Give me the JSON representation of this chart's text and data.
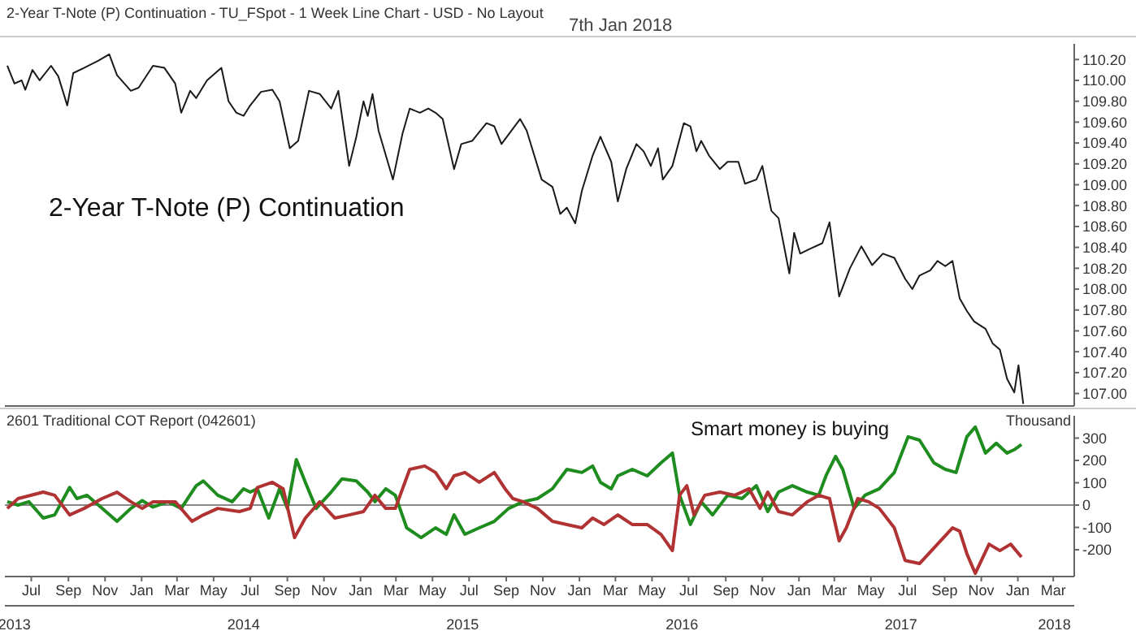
{
  "chart_data": [
    {
      "type": "line",
      "title": "2-Year T-Note (P) Continuation - TU_FSpot - 1 Week Line Chart - USD - No Layout",
      "annotations": [
        "7th Jan 2018",
        "2-Year T-Note (P) Continuation"
      ],
      "marker": "none",
      "line_style": "solid",
      "legend": false,
      "grid": false,
      "tick_labels": "y",
      "xlim": [
        "2013-05-18",
        "2018-04-05"
      ],
      "ylim": [
        106.88,
        110.35
      ],
      "yticks": [
        {
          "value": 107,
          "label": "107.00"
        },
        {
          "value": 107.2,
          "label": "107.20"
        },
        {
          "value": 107.4,
          "label": "107.40"
        },
        {
          "value": 107.6,
          "label": "107.60"
        },
        {
          "value": 107.8,
          "label": "107.80"
        },
        {
          "value": 108,
          "label": "108.00"
        },
        {
          "value": 108.2,
          "label": "108.20"
        },
        {
          "value": 108.4,
          "label": "108.40"
        },
        {
          "value": 108.6,
          "label": "108.60"
        },
        {
          "value": 108.8,
          "label": "108.80"
        },
        {
          "value": 109,
          "label": "109.00"
        },
        {
          "value": 109.2,
          "label": "109.20"
        },
        {
          "value": 109.4,
          "label": "109.40"
        },
        {
          "value": 109.6,
          "label": "109.60"
        },
        {
          "value": 109.8,
          "label": "109.80"
        },
        {
          "value": 110,
          "label": "110.00"
        },
        {
          "value": 110.2,
          "label": "110.20"
        }
      ],
      "series": [
        {
          "color": "#1a1a1a",
          "x": [
            "2013-05-22",
            "2013-06-03",
            "2013-06-15",
            "2013-06-21",
            "2013-07-03",
            "2013-07-15",
            "2013-08-03",
            "2013-08-15",
            "2013-08-30",
            "2013-09-09",
            "2013-09-27",
            "2013-10-21",
            "2013-11-08",
            "2013-11-21",
            "2013-12-14",
            "2013-12-27",
            "2014-01-20",
            "2014-02-08",
            "2014-02-26",
            "2014-03-08",
            "2014-03-23",
            "2014-04-02",
            "2014-04-20",
            "2014-05-14",
            "2014-05-26",
            "2014-06-08",
            "2014-06-20",
            "2014-07-01",
            "2014-07-19",
            "2014-08-07",
            "2014-08-19",
            "2014-09-05",
            "2014-09-19",
            "2014-10-07",
            "2014-10-25",
            "2014-11-13",
            "2014-11-25",
            "2014-12-13",
            "2014-12-25",
            "2015-01-06",
            "2015-01-13",
            "2015-01-21",
            "2015-01-31",
            "2015-02-24",
            "2015-03-12",
            "2015-03-24",
            "2015-04-10",
            "2015-04-24",
            "2015-05-06",
            "2015-05-18",
            "2015-06-06",
            "2015-06-18",
            "2015-07-06",
            "2015-07-30",
            "2015-08-12",
            "2015-08-24",
            "2015-09-24",
            "2015-10-05",
            "2015-10-30",
            "2015-11-17",
            "2015-11-30",
            "2015-12-11",
            "2015-12-25",
            "2016-01-05",
            "2016-01-23",
            "2016-02-05",
            "2016-02-23",
            "2016-03-05",
            "2016-03-19",
            "2016-04-05",
            "2016-04-17",
            "2016-04-29",
            "2016-05-11",
            "2016-05-19",
            "2016-06-04",
            "2016-06-23",
            "2016-07-04",
            "2016-07-14",
            "2016-07-22",
            "2016-08-04",
            "2016-08-22",
            "2016-09-04",
            "2016-09-22",
            "2016-10-03",
            "2016-10-22",
            "2016-11-01",
            "2016-11-16",
            "2016-11-28",
            "2016-12-16",
            "2016-12-24",
            "2017-01-03",
            "2017-01-21",
            "2017-02-09",
            "2017-02-21",
            "2017-03-09",
            "2017-03-27",
            "2017-04-15",
            "2017-05-03",
            "2017-05-21",
            "2017-06-09",
            "2017-06-27",
            "2017-07-09",
            "2017-07-21",
            "2017-08-08",
            "2017-08-20",
            "2017-09-02",
            "2017-09-14",
            "2017-09-26",
            "2017-10-08",
            "2017-10-20",
            "2017-11-08",
            "2017-11-20",
            "2017-12-02",
            "2017-12-14",
            "2017-12-26",
            "2018-01-02",
            "2018-01-10"
          ],
          "values": [
            110.14,
            109.97,
            110.0,
            109.91,
            110.1,
            110.0,
            110.14,
            110.04,
            109.76,
            110.07,
            110.12,
            110.19,
            110.25,
            110.05,
            109.9,
            109.93,
            110.14,
            110.12,
            109.97,
            109.69,
            109.9,
            109.83,
            110.0,
            110.12,
            109.8,
            109.69,
            109.66,
            109.76,
            109.89,
            109.91,
            109.8,
            109.35,
            109.42,
            109.9,
            109.87,
            109.73,
            109.9,
            109.18,
            109.46,
            109.8,
            109.66,
            109.87,
            109.52,
            109.05,
            109.49,
            109.73,
            109.69,
            109.73,
            109.69,
            109.63,
            109.15,
            109.39,
            109.42,
            109.59,
            109.56,
            109.39,
            109.63,
            109.52,
            109.05,
            108.98,
            108.72,
            108.78,
            108.63,
            108.94,
            109.28,
            109.46,
            109.22,
            108.84,
            109.15,
            109.39,
            109.32,
            109.18,
            109.35,
            109.05,
            109.18,
            109.59,
            109.56,
            109.32,
            109.42,
            109.28,
            109.15,
            109.22,
            109.22,
            109.01,
            109.05,
            109.18,
            108.75,
            108.68,
            108.15,
            108.54,
            108.34,
            108.39,
            108.44,
            108.64,
            107.93,
            108.2,
            108.41,
            108.23,
            108.34,
            108.3,
            108.1,
            108.0,
            108.13,
            108.18,
            108.27,
            108.22,
            108.27,
            107.91,
            107.79,
            107.69,
            107.62,
            107.48,
            107.42,
            107.14,
            107.01,
            107.27,
            106.9
          ]
        }
      ]
    },
    {
      "type": "line",
      "title": "2601 Traditional COT Report (042601)",
      "ylabel": "Thousand",
      "annotations": [
        "Smart money is buying"
      ],
      "marker": "none",
      "line_style": "solid",
      "legend": false,
      "grid": false,
      "xlim": [
        "2013-05-18",
        "2018-04-05"
      ],
      "xticks": [
        {
          "value": "2013-07",
          "label": "Jul"
        },
        {
          "value": "2013-09",
          "label": "Sep"
        },
        {
          "value": "2013-11",
          "label": "Nov"
        },
        {
          "value": "2014-01",
          "label": "Jan"
        },
        {
          "value": "2014-03",
          "label": "Mar"
        },
        {
          "value": "2014-05",
          "label": "May"
        },
        {
          "value": "2014-07",
          "label": "Jul"
        },
        {
          "value": "2014-09",
          "label": "Sep"
        },
        {
          "value": "2014-11",
          "label": "Nov"
        },
        {
          "value": "2015-01",
          "label": "Jan"
        },
        {
          "value": "2015-03",
          "label": "Mar"
        },
        {
          "value": "2015-05",
          "label": "May"
        },
        {
          "value": "2015-07",
          "label": "Jul"
        },
        {
          "value": "2015-09",
          "label": "Sep"
        },
        {
          "value": "2015-11",
          "label": "Nov"
        },
        {
          "value": "2016-01",
          "label": "Jan"
        },
        {
          "value": "2016-03",
          "label": "Mar"
        },
        {
          "value": "2016-05",
          "label": "May"
        },
        {
          "value": "2016-07",
          "label": "Jul"
        },
        {
          "value": "2016-09",
          "label": "Sep"
        },
        {
          "value": "2016-11",
          "label": "Nov"
        },
        {
          "value": "2017-01",
          "label": "Jan"
        },
        {
          "value": "2017-03",
          "label": "Mar"
        },
        {
          "value": "2017-05",
          "label": "May"
        },
        {
          "value": "2017-07",
          "label": "Jul"
        },
        {
          "value": "2017-09",
          "label": "Sep"
        },
        {
          "value": "2017-11",
          "label": "Nov"
        },
        {
          "value": "2018-01",
          "label": "Jan"
        },
        {
          "value": "2018-03",
          "label": "Mar"
        }
      ],
      "x2lim": [
        "2013-05-18",
        "2018-04-05"
      ],
      "x2ticks": [
        {
          "value": "2013-06-03",
          "label": "2013"
        },
        {
          "value": "2014-06-20",
          "label": "2014"
        },
        {
          "value": "2015-06-20",
          "label": "2015"
        },
        {
          "value": "2016-06-20",
          "label": "2016"
        },
        {
          "value": "2017-06-20",
          "label": "2017"
        },
        {
          "value": "2018-03-03",
          "label": "2018"
        }
      ],
      "ylim": [
        -320,
        400
      ],
      "yticks": [
        -200,
        -100,
        0,
        100,
        200,
        300
      ],
      "ref_lines": [
        {
          "axis": "y",
          "value": 0,
          "color": "#888888"
        }
      ],
      "series": [
        {
          "color": "#1e8c1e",
          "x": [
            "2013-05-22",
            "2013-06-09",
            "2013-06-27",
            "2013-07-21",
            "2013-08-09",
            "2013-09-03",
            "2013-09-15",
            "2013-10-02",
            "2013-10-21",
            "2013-11-21",
            "2013-12-14",
            "2014-01-02",
            "2014-01-20",
            "2014-02-14",
            "2014-03-08",
            "2014-04-02",
            "2014-04-14",
            "2014-05-08",
            "2014-06-01",
            "2014-06-20",
            "2014-07-01",
            "2014-07-13",
            "2014-08-01",
            "2014-08-19",
            "2014-09-01",
            "2014-09-16",
            "2014-10-01",
            "2014-10-19",
            "2014-11-13",
            "2014-12-01",
            "2014-12-25",
            "2015-01-13",
            "2015-01-25",
            "2015-02-12",
            "2015-02-28",
            "2015-03-19",
            "2015-04-12",
            "2015-05-06",
            "2015-05-24",
            "2015-06-06",
            "2015-06-24",
            "2015-07-18",
            "2015-08-12",
            "2015-09-05",
            "2015-09-29",
            "2015-10-23",
            "2015-11-17",
            "2015-12-11",
            "2016-01-05",
            "2016-01-23",
            "2016-02-05",
            "2016-02-23",
            "2016-03-05",
            "2016-03-29",
            "2016-04-23",
            "2016-05-16",
            "2016-06-04",
            "2016-06-16",
            "2016-07-04",
            "2016-07-22",
            "2016-08-10",
            "2016-09-04",
            "2016-09-28",
            "2016-10-22",
            "2016-11-10",
            "2016-11-28",
            "2016-12-21",
            "2017-01-15",
            "2017-02-03",
            "2017-02-15",
            "2017-03-03",
            "2017-03-15",
            "2017-04-03",
            "2017-04-21",
            "2017-05-15",
            "2017-06-09",
            "2017-07-02",
            "2017-07-21",
            "2017-08-14",
            "2017-09-02",
            "2017-09-20",
            "2017-10-08",
            "2017-10-22",
            "2017-11-08",
            "2017-11-26",
            "2017-12-14",
            "2017-12-26",
            "2018-01-07"
          ],
          "values": [
            15,
            0,
            15,
            -58,
            -44,
            79,
            29,
            44,
            0,
            -73,
            -15,
            20,
            -9,
            15,
            -15,
            87,
            108,
            44,
            15,
            73,
            58,
            73,
            -58,
            73,
            -15,
            204,
            102,
            -15,
            58,
            117,
            108,
            58,
            15,
            73,
            44,
            -102,
            -146,
            -102,
            -131,
            -44,
            -131,
            -102,
            -73,
            -15,
            15,
            29,
            73,
            160,
            146,
            175,
            102,
            73,
            131,
            160,
            131,
            189,
            233,
            44,
            -87,
            15,
            -44,
            44,
            29,
            87,
            -29,
            58,
            87,
            58,
            44,
            131,
            218,
            160,
            -15,
            44,
            73,
            146,
            306,
            291,
            189,
            160,
            146,
            306,
            350,
            233,
            277,
            233,
            248,
            271
          ]
        },
        {
          "color": "#b03232",
          "x": [
            "2013-05-22",
            "2013-06-09",
            "2013-07-21",
            "2013-08-09",
            "2013-09-03",
            "2013-09-27",
            "2013-10-27",
            "2013-11-21",
            "2013-12-14",
            "2014-01-02",
            "2014-01-20",
            "2014-02-26",
            "2014-03-26",
            "2014-04-14",
            "2014-05-08",
            "2014-06-13",
            "2014-07-01",
            "2014-07-13",
            "2014-08-07",
            "2014-08-25",
            "2014-09-13",
            "2014-10-01",
            "2014-10-25",
            "2014-11-19",
            "2014-12-13",
            "2015-01-06",
            "2015-01-25",
            "2015-02-12",
            "2015-02-28",
            "2015-03-24",
            "2015-04-18",
            "2015-05-06",
            "2015-05-24",
            "2015-06-06",
            "2015-06-24",
            "2015-07-18",
            "2015-08-12",
            "2015-08-30",
            "2015-09-12",
            "2015-09-29",
            "2015-10-23",
            "2015-11-17",
            "2015-12-11",
            "2016-01-05",
            "2016-01-23",
            "2016-02-11",
            "2016-03-05",
            "2016-03-29",
            "2016-04-23",
            "2016-05-16",
            "2016-06-04",
            "2016-06-16",
            "2016-06-28",
            "2016-07-10",
            "2016-07-28",
            "2016-08-22",
            "2016-09-16",
            "2016-10-10",
            "2016-10-28",
            "2016-11-10",
            "2016-11-28",
            "2016-12-21",
            "2017-01-15",
            "2017-02-03",
            "2017-02-21",
            "2017-03-09",
            "2017-03-21",
            "2017-04-09",
            "2017-04-27",
            "2017-05-15",
            "2017-06-09",
            "2017-06-27",
            "2017-07-21",
            "2017-08-20",
            "2017-09-14",
            "2017-09-26",
            "2017-10-08",
            "2017-10-22",
            "2017-11-14",
            "2017-12-02",
            "2017-12-20",
            "2018-01-07"
          ],
          "values": [
            -15,
            29,
            58,
            44,
            -44,
            -15,
            29,
            58,
            15,
            -15,
            15,
            15,
            -73,
            -44,
            -15,
            -29,
            -15,
            79,
            102,
            73,
            -146,
            -58,
            15,
            -58,
            -44,
            -29,
            44,
            -15,
            -15,
            160,
            175,
            146,
            73,
            131,
            146,
            102,
            146,
            73,
            29,
            15,
            -15,
            -73,
            -87,
            -102,
            -58,
            -87,
            -44,
            -87,
            -87,
            -131,
            -204,
            44,
            87,
            -44,
            44,
            58,
            44,
            73,
            -15,
            58,
            -29,
            -44,
            15,
            44,
            29,
            -160,
            -102,
            29,
            15,
            -15,
            -102,
            -248,
            -262,
            -175,
            -102,
            -117,
            -218,
            -306,
            -175,
            -204,
            -175,
            -233
          ]
        }
      ]
    }
  ]
}
